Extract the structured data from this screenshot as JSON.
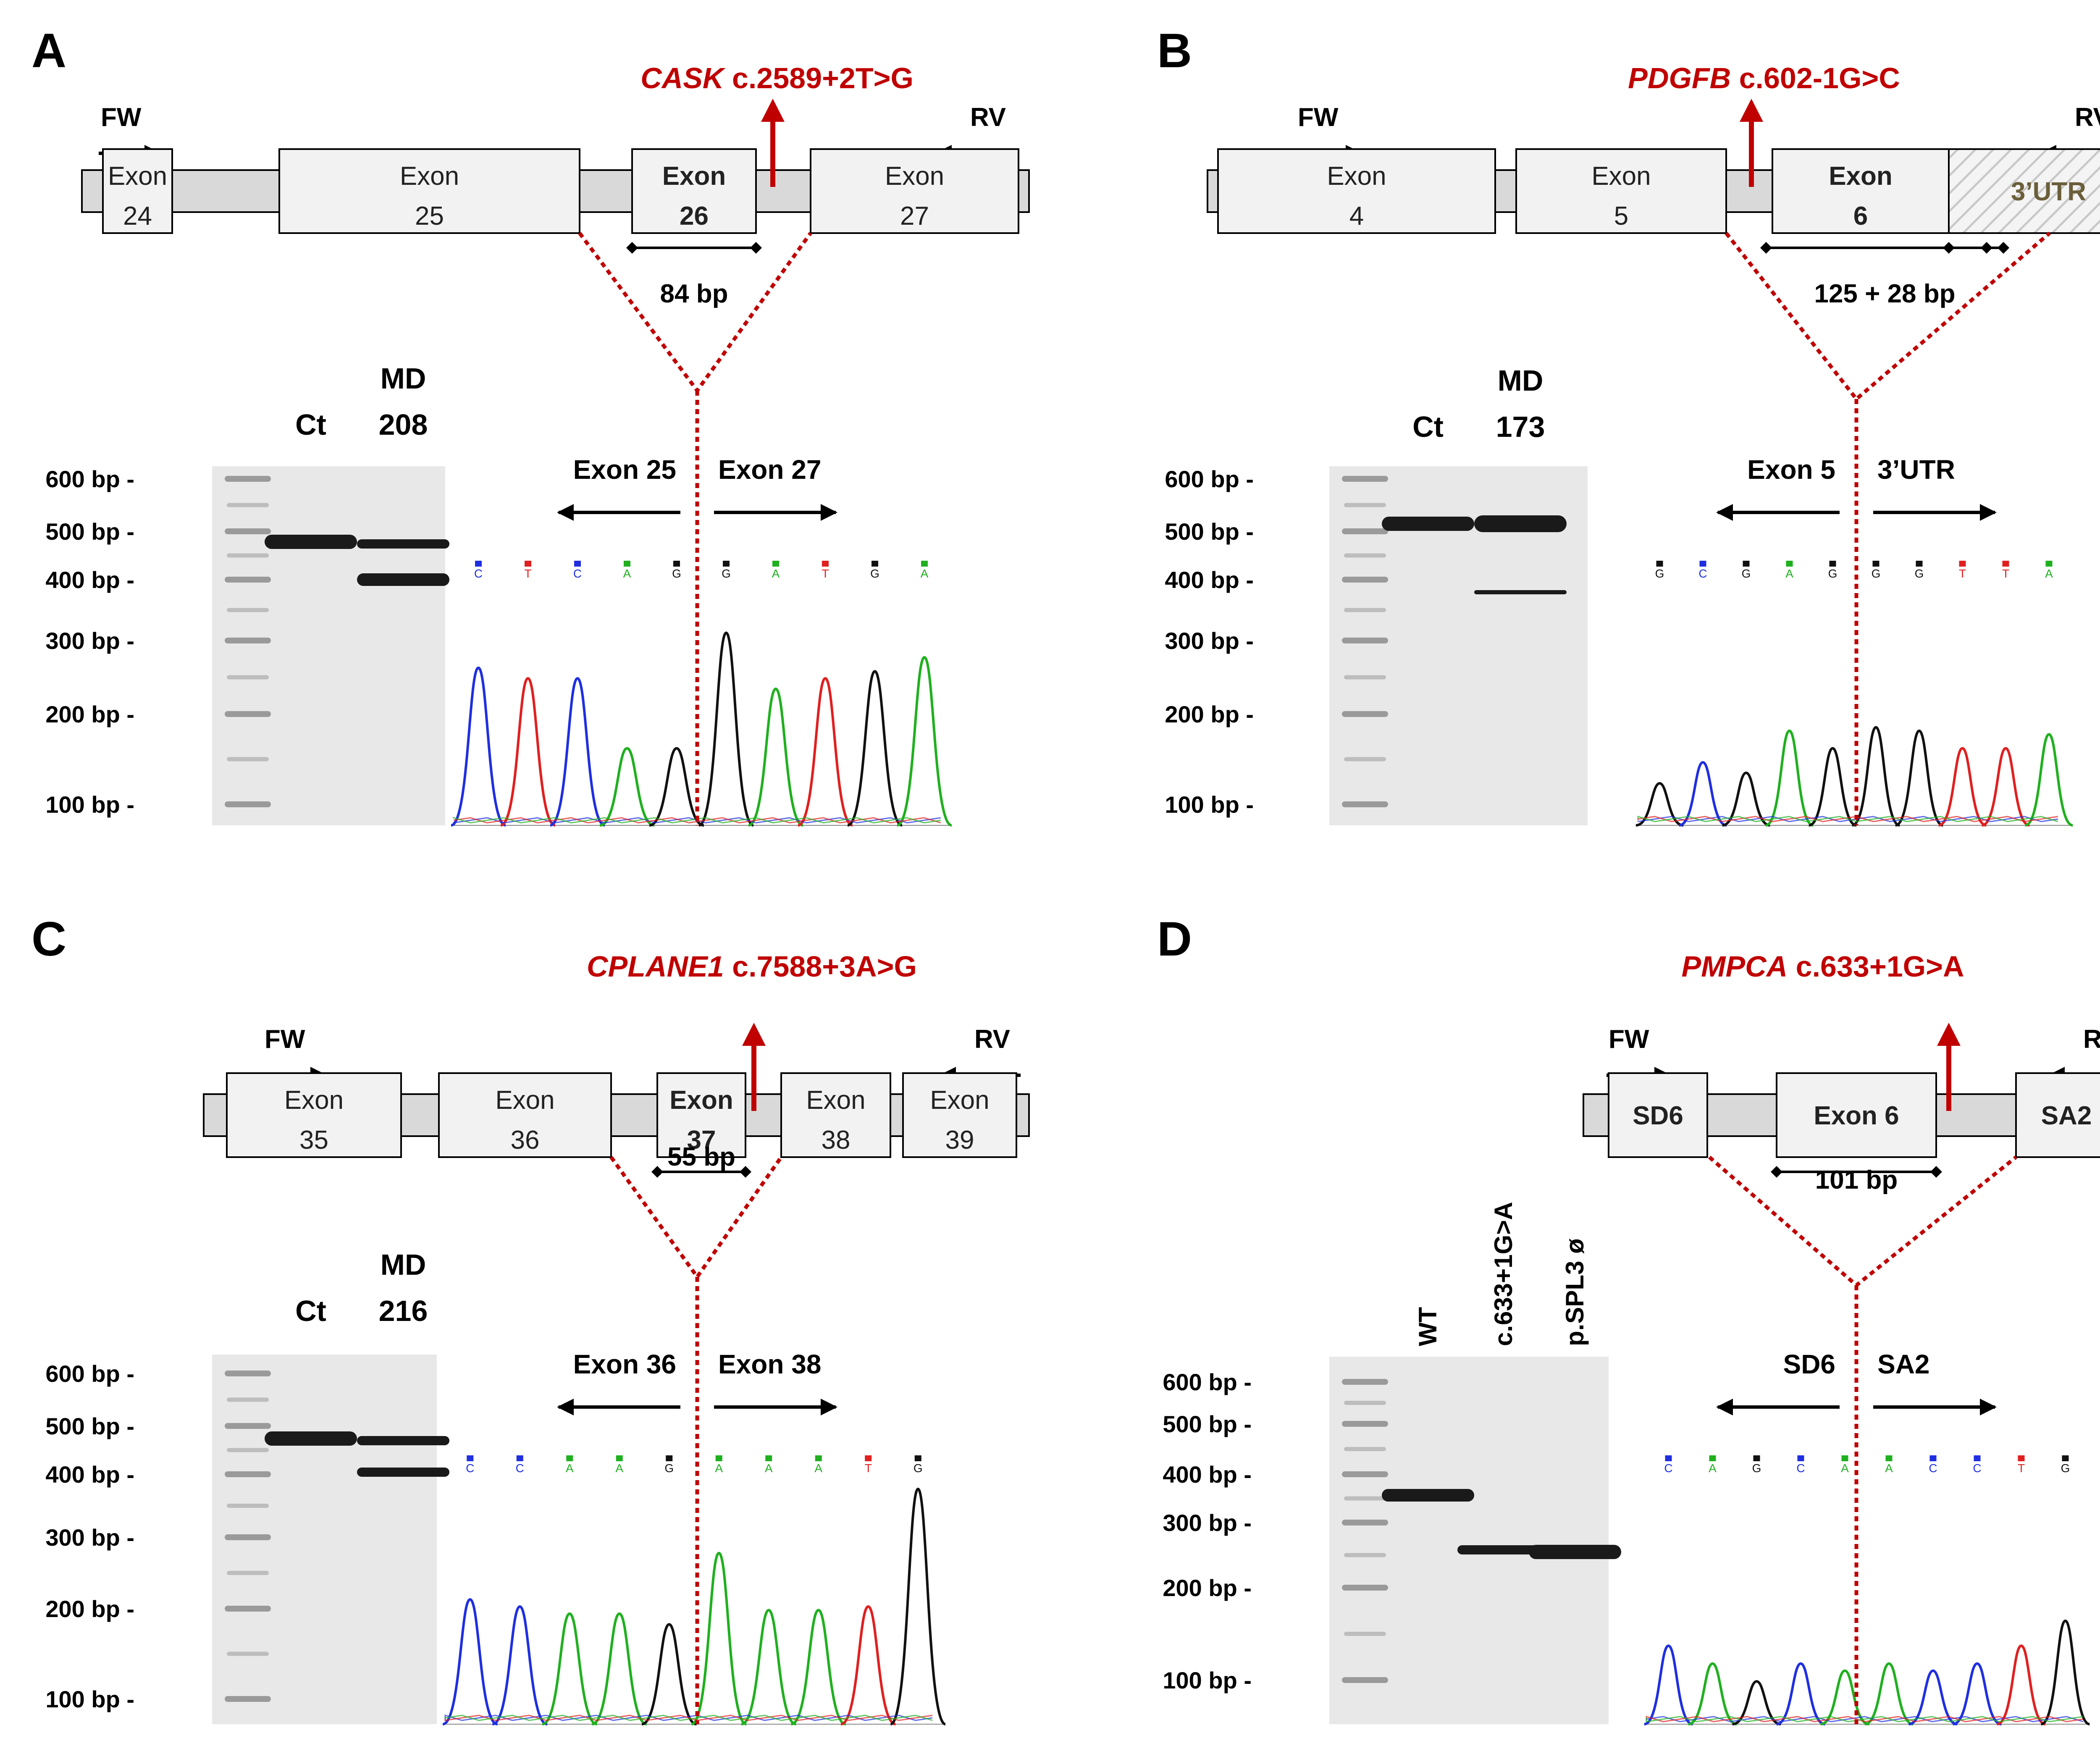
{
  "panels": [
    {
      "letter": "A",
      "mutation_gene": "CASK",
      "mutation_change": " c.2589+2T>G",
      "fw_label": "FW",
      "rv_label": "RV",
      "boxes": [
        {
          "top": "Exon",
          "bottom": "24",
          "bold": false,
          "hatched": false
        },
        {
          "top": "Exon",
          "bottom": "25",
          "bold": false,
          "hatched": false
        },
        {
          "top": "Exon",
          "bottom": "26",
          "bold": true,
          "hatched": false
        },
        {
          "top": "Exon",
          "bottom": "27",
          "bold": false,
          "hatched": false
        }
      ],
      "length_label": "84 bp",
      "lane_labels": [
        "Ct",
        "MD\n208"
      ],
      "ladder": [
        "600 bp -",
        "500 bp -",
        "400 bp -",
        "300 bp -",
        "200 bp -",
        "100 bp -"
      ],
      "junction_left": "Exon 25",
      "junction_right": "Exon 27",
      "bases": [
        "C",
        "T",
        "C",
        "A",
        "G",
        "G",
        "A",
        "T",
        "G",
        "A"
      ]
    },
    {
      "letter": "B",
      "mutation_gene": "PDGFB",
      "mutation_change": " c.602-1G>C",
      "fw_label": "FW",
      "rv_label": "RV",
      "boxes": [
        {
          "top": "Exon",
          "bottom": "4",
          "bold": false,
          "hatched": false
        },
        {
          "top": "Exon",
          "bottom": "5",
          "bold": false,
          "hatched": false
        },
        {
          "top": "Exon",
          "bottom": "6",
          "bold": true,
          "hatched": false
        },
        {
          "top": "3’UTR",
          "bottom": "",
          "bold": true,
          "hatched": true
        }
      ],
      "length_label": "125 + 28 bp",
      "lane_labels": [
        "Ct",
        "MD\n173"
      ],
      "ladder": [
        "600 bp -",
        "500 bp -",
        "400 bp -",
        "300 bp -",
        "200 bp -",
        "100 bp -"
      ],
      "junction_left": "Exon 5",
      "junction_right": "3’UTR",
      "bases": [
        "G",
        "C",
        "G",
        "A",
        "G",
        "G",
        "G",
        "T",
        "T",
        "A"
      ]
    },
    {
      "letter": "C",
      "mutation_gene": "CPLANE1",
      "mutation_change": " c.7588+3A>G",
      "fw_label": "FW",
      "rv_label": "RV",
      "boxes": [
        {
          "top": "Exon",
          "bottom": "35",
          "bold": false,
          "hatched": false
        },
        {
          "top": "Exon",
          "bottom": "36",
          "bold": false,
          "hatched": false
        },
        {
          "top": "Exon",
          "bottom": "37",
          "bold": true,
          "hatched": false
        },
        {
          "top": "Exon",
          "bottom": "38",
          "bold": false,
          "hatched": false
        },
        {
          "top": "Exon",
          "bottom": "39",
          "bold": false,
          "hatched": false
        }
      ],
      "length_label": "55 bp",
      "lane_labels": [
        "Ct",
        "MD\n216"
      ],
      "ladder": [
        "600 bp -",
        "500 bp -",
        "400 bp -",
        "300 bp -",
        "200 bp -",
        "100 bp -"
      ],
      "junction_left": "Exon 36",
      "junction_right": "Exon 38",
      "bases": [
        "C",
        "C",
        "A",
        "A",
        "G",
        "A",
        "A",
        "A",
        "T",
        "G"
      ]
    },
    {
      "letter": "D",
      "mutation_gene": "PMPCA",
      "mutation_change": " c.633+1G>A",
      "fw_label": "FW",
      "rv_label": "RV",
      "boxes": [
        {
          "top": "SD6",
          "bottom": "",
          "bold": true,
          "hatched": false
        },
        {
          "top": "Exon 6",
          "bottom": "",
          "bold": true,
          "hatched": false
        },
        {
          "top": "SA2",
          "bottom": "",
          "bold": true,
          "hatched": false
        }
      ],
      "length_label": "101 bp",
      "lane_labels": [
        "WT",
        "c.633+1G>A",
        "p.SPL3 ø"
      ],
      "ladder": [
        "600 bp -",
        "500 bp -",
        "400 bp -",
        "300 bp -",
        "200 bp -",
        "100 bp -"
      ],
      "junction_left": "SD6",
      "junction_right": "SA2",
      "bases": [
        "C",
        "A",
        "G",
        "C",
        "A",
        "A",
        "C",
        "C",
        "T",
        "G"
      ]
    }
  ],
  "colors": {
    "mutation": "#C00000",
    "base_A": "#1FB01F",
    "base_C": "#1F2FE0",
    "base_G": "#111111",
    "base_T": "#E02020",
    "utr_text": "#6B5E3A"
  }
}
